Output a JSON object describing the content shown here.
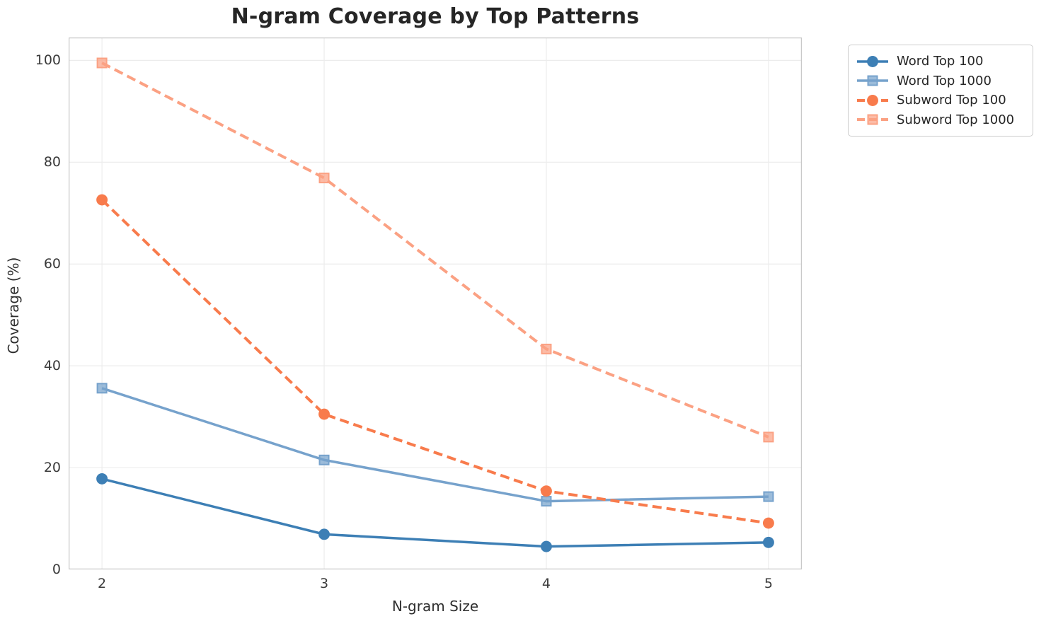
{
  "title": "N-gram Coverage by Top Patterns",
  "chart_data": {
    "type": "line",
    "title": "N-gram Coverage by Top Patterns",
    "xlabel": "N-gram Size",
    "ylabel": "Coverage (%)",
    "x": [
      2,
      3,
      4,
      5
    ],
    "xticks": [
      2,
      3,
      4,
      5
    ],
    "yticks": [
      0,
      20,
      40,
      60,
      80,
      100
    ],
    "xlim": [
      1.85,
      5.15
    ],
    "ylim": [
      0,
      104.5
    ],
    "grid": true,
    "legend_position": "upper right, outside plot",
    "series": [
      {
        "name": "Word Top 100",
        "color": "#3d7fb5",
        "style": "solid",
        "marker": "circle",
        "values": [
          17.8,
          6.9,
          4.5,
          5.3
        ]
      },
      {
        "name": "Word Top 1000",
        "color": "#76a2cc",
        "style": "solid",
        "marker": "square",
        "values": [
          35.6,
          21.5,
          13.4,
          14.3
        ]
      },
      {
        "name": "Subword Top 100",
        "color": "#f87b4c",
        "style": "dashed",
        "marker": "circle",
        "values": [
          72.6,
          30.5,
          15.4,
          9.1
        ]
      },
      {
        "name": "Subword Top 1000",
        "color": "#fba183",
        "style": "dashed",
        "marker": "square",
        "values": [
          99.5,
          76.9,
          43.3,
          26.0
        ]
      }
    ],
    "colors": {
      "grid": "#ececec",
      "spine": "#c9c9c9",
      "title_text": "#262626",
      "tick_text": "#3a3a3a",
      "axis_label_text": "#2e2e2e",
      "legend_border": "#cccccc",
      "background": "#ffffff"
    }
  }
}
